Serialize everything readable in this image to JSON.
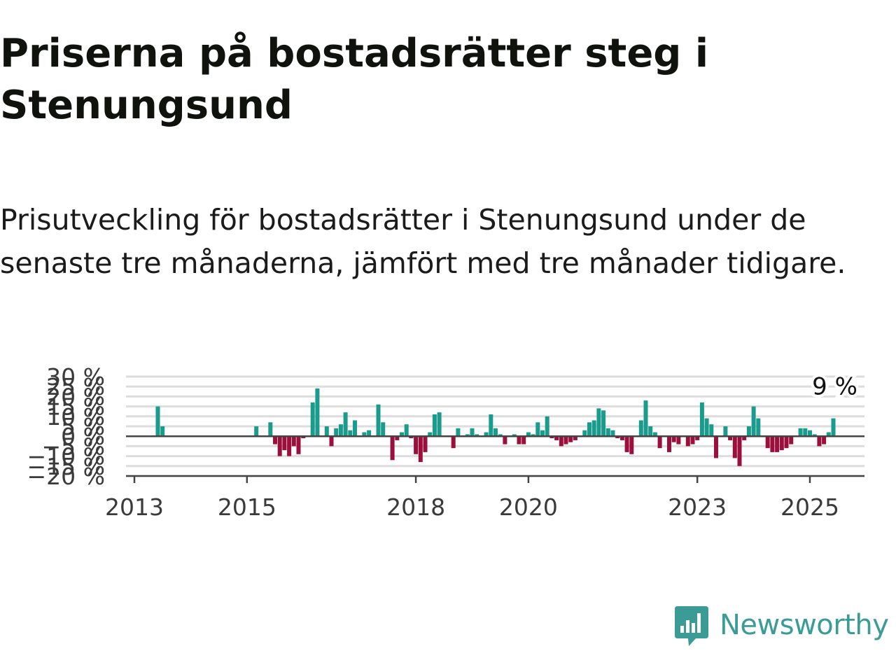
{
  "title": "Priserna på bostadsrätter steg i Stenungsund",
  "subtitle": "Prisutveckling för bostadsrätter i Stenungsund under de senaste tre månaderna, jämfört med tre månader tidigare.",
  "brand": {
    "name": "Newsworthy",
    "color": "#3a9c94"
  },
  "colors": {
    "positive": "#1a9b8c",
    "negative": "#9b0f3c",
    "grid": "#dddddd",
    "axis": "#444444"
  },
  "chart_data": {
    "type": "bar",
    "title": "",
    "xlabel": "",
    "ylabel": "",
    "y_unit": "%",
    "ylim": [
      -20,
      30
    ],
    "y_ticks": [
      {
        "value": 30,
        "label": "30 %"
      },
      {
        "value": 25,
        "label": "25 %"
      },
      {
        "value": 20,
        "label": "20 %"
      },
      {
        "value": 15,
        "label": "15 %"
      },
      {
        "value": 10,
        "label": "10 %"
      },
      {
        "value": 5,
        "label": "5 %"
      },
      {
        "value": 0,
        "label": "0 %"
      },
      {
        "value": -5,
        "label": "−5 %"
      },
      {
        "value": -10,
        "label": "−10 %"
      },
      {
        "value": -15,
        "label": "−15 %"
      },
      {
        "value": -20,
        "label": "−20 %"
      }
    ],
    "x_ticks": [
      "2013",
      "2015",
      "2018",
      "2020",
      "2023",
      "2025"
    ],
    "grid": true,
    "last_value_label": "9 %",
    "series": [
      {
        "points": [
          [
            "2013-06",
            15
          ],
          [
            "2013-07",
            5
          ],
          [
            "2015-03",
            5
          ],
          [
            "2015-06",
            7
          ],
          [
            "2015-07",
            -4
          ],
          [
            "2015-08",
            -10
          ],
          [
            "2015-09",
            -7
          ],
          [
            "2015-10",
            -10
          ],
          [
            "2015-11",
            -5
          ],
          [
            "2015-12",
            -9
          ],
          [
            "2016-01",
            -1
          ],
          [
            "2016-03",
            17
          ],
          [
            "2016-04",
            24
          ],
          [
            "2016-06",
            5
          ],
          [
            "2016-07",
            -5
          ],
          [
            "2016-08",
            4
          ],
          [
            "2016-09",
            6
          ],
          [
            "2016-10",
            12
          ],
          [
            "2016-11",
            3
          ],
          [
            "2016-12",
            8
          ],
          [
            "2017-02",
            2
          ],
          [
            "2017-03",
            3
          ],
          [
            "2017-05",
            16
          ],
          [
            "2017-06",
            7
          ],
          [
            "2017-08",
            -12
          ],
          [
            "2017-09",
            -2
          ],
          [
            "2017-10",
            2
          ],
          [
            "2017-11",
            6
          ],
          [
            "2017-12",
            -1
          ],
          [
            "2018-01",
            -9
          ],
          [
            "2018-02",
            -13
          ],
          [
            "2018-03",
            -8
          ],
          [
            "2018-04",
            2
          ],
          [
            "2018-05",
            11
          ],
          [
            "2018-06",
            12
          ],
          [
            "2018-09",
            -6
          ],
          [
            "2018-10",
            4
          ],
          [
            "2018-12",
            1
          ],
          [
            "2019-01",
            4
          ],
          [
            "2019-02",
            1
          ],
          [
            "2019-04",
            2
          ],
          [
            "2019-05",
            11
          ],
          [
            "2019-06",
            4
          ],
          [
            "2019-07",
            1
          ],
          [
            "2019-08",
            -4
          ],
          [
            "2019-10",
            1
          ],
          [
            "2019-11",
            -4
          ],
          [
            "2019-12",
            -4
          ],
          [
            "2020-01",
            2
          ],
          [
            "2020-02",
            1
          ],
          [
            "2020-03",
            7
          ],
          [
            "2020-04",
            3
          ],
          [
            "2020-05",
            10
          ],
          [
            "2020-06",
            -1
          ],
          [
            "2020-07",
            -2
          ],
          [
            "2020-08",
            -5
          ],
          [
            "2020-09",
            -4
          ],
          [
            "2020-10",
            -3
          ],
          [
            "2020-11",
            -2
          ],
          [
            "2021-01",
            3
          ],
          [
            "2021-02",
            7
          ],
          [
            "2021-03",
            8
          ],
          [
            "2021-04",
            14
          ],
          [
            "2021-05",
            13
          ],
          [
            "2021-06",
            4
          ],
          [
            "2021-07",
            3
          ],
          [
            "2021-08",
            -1
          ],
          [
            "2021-09",
            -2
          ],
          [
            "2021-10",
            -8
          ],
          [
            "2021-11",
            -9
          ],
          [
            "2022-01",
            8
          ],
          [
            "2022-02",
            18
          ],
          [
            "2022-03",
            5
          ],
          [
            "2022-04",
            2
          ],
          [
            "2022-05",
            -6
          ],
          [
            "2022-07",
            -8
          ],
          [
            "2022-08",
            -3
          ],
          [
            "2022-09",
            -4
          ],
          [
            "2022-11",
            -5
          ],
          [
            "2022-12",
            -4
          ],
          [
            "2023-01",
            -2
          ],
          [
            "2023-02",
            17
          ],
          [
            "2023-03",
            9
          ],
          [
            "2023-04",
            6
          ],
          [
            "2023-05",
            -11
          ],
          [
            "2023-07",
            5
          ],
          [
            "2023-08",
            -2
          ],
          [
            "2023-09",
            -11
          ],
          [
            "2023-10",
            -15
          ],
          [
            "2023-11",
            -2
          ],
          [
            "2023-12",
            5
          ],
          [
            "2024-01",
            15
          ],
          [
            "2024-02",
            9
          ],
          [
            "2024-04",
            -6
          ],
          [
            "2024-05",
            -8
          ],
          [
            "2024-06",
            -8
          ],
          [
            "2024-07",
            -7
          ],
          [
            "2024-08",
            -6
          ],
          [
            "2024-09",
            -4
          ],
          [
            "2024-11",
            4
          ],
          [
            "2024-12",
            4
          ],
          [
            "2025-01",
            3
          ],
          [
            "2025-02",
            1
          ],
          [
            "2025-03",
            -5
          ],
          [
            "2025-04",
            -4
          ],
          [
            "2025-05",
            2
          ],
          [
            "2025-06",
            9
          ]
        ]
      }
    ]
  }
}
